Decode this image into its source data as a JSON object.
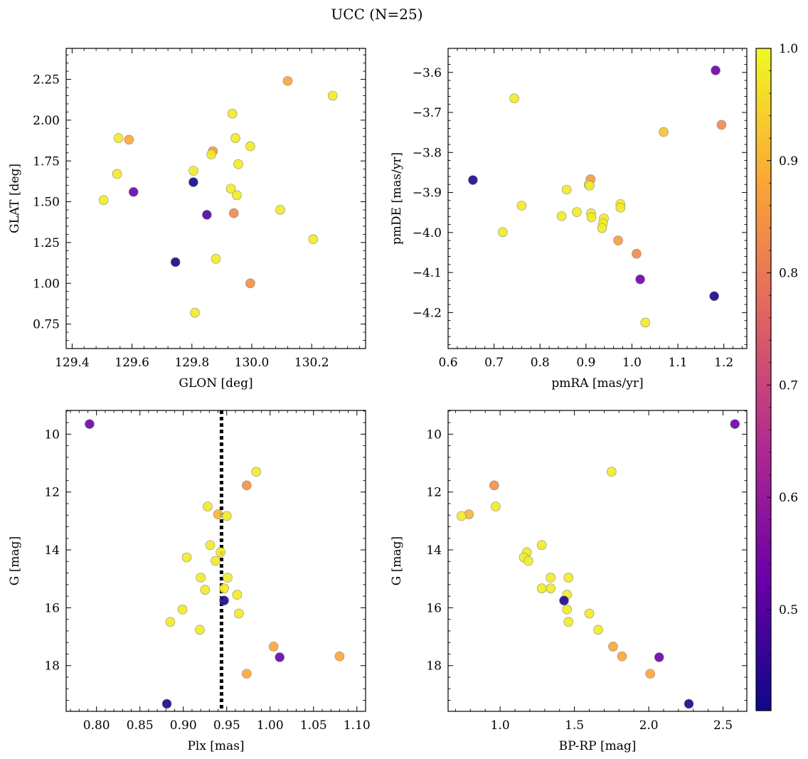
{
  "figure": {
    "title": "UCC (N=25)"
  },
  "colors": {
    "frame": "#000000",
    "point_edge": "#8a8a8a",
    "vline": "#000000",
    "cmap_stops": [
      "#0d0887",
      "#6a00a8",
      "#b12a90",
      "#e16462",
      "#fca636",
      "#f0f921"
    ]
  },
  "colorbar": {
    "range": [
      0.41,
      1.0
    ],
    "ticks": [
      0.5,
      0.6,
      0.7,
      0.8,
      0.9,
      1.0
    ],
    "tick_labels": [
      "0.5",
      "0.6",
      "0.7",
      "0.8",
      "0.9",
      "1.0"
    ]
  },
  "chart_data": [
    {
      "type": "scatter",
      "xlabel": "GLON [deg]",
      "ylabel": "GLAT [deg]",
      "xlim": [
        129.38,
        130.38
      ],
      "ylim": [
        0.6,
        2.44
      ],
      "xticks": [
        129.4,
        129.6,
        129.8,
        130.0,
        130.2
      ],
      "xtick_labels": [
        "129.4",
        "129.6",
        "129.8",
        "130.0",
        "130.2"
      ],
      "yticks": [
        0.75,
        1.0,
        1.25,
        1.5,
        1.75,
        2.0,
        2.25
      ],
      "ytick_labels": [
        "0.75",
        "1.00",
        "1.25",
        "1.50",
        "1.75",
        "2.00",
        "2.25"
      ],
      "x": [
        130.12,
        130.27,
        129.935,
        129.555,
        129.59,
        129.945,
        129.995,
        129.87,
        129.865,
        129.955,
        129.805,
        129.55,
        129.805,
        129.505,
        129.605,
        129.93,
        129.95,
        130.095,
        129.94,
        129.85,
        130.205,
        129.745,
        129.88,
        129.995,
        129.81
      ],
      "y": [
        2.24,
        2.15,
        2.04,
        1.89,
        1.88,
        1.89,
        1.84,
        1.81,
        1.79,
        1.73,
        1.69,
        1.67,
        1.62,
        1.51,
        1.56,
        1.58,
        1.54,
        1.45,
        1.43,
        1.42,
        1.27,
        1.13,
        1.15,
        1.0,
        0.82
      ],
      "c": [
        0.88,
        0.98,
        0.98,
        0.98,
        0.88,
        0.98,
        0.98,
        0.86,
        0.98,
        0.98,
        0.98,
        0.98,
        0.41,
        0.98,
        0.53,
        0.98,
        0.98,
        0.98,
        0.83,
        0.49,
        0.98,
        0.42,
        0.98,
        0.84,
        0.98
      ]
    },
    {
      "type": "scatter",
      "xlabel": "pmRA [mas/yr]",
      "ylabel": "pmDE [mas/yr]",
      "xlim": [
        0.6,
        1.25
      ],
      "ylim": [
        -4.29,
        -3.54
      ],
      "xticks": [
        0.6,
        0.7,
        0.8,
        0.9,
        1.0,
        1.1,
        1.2
      ],
      "xtick_labels": [
        "0.6",
        "0.7",
        "0.8",
        "0.9",
        "1.0",
        "1.1",
        "1.2"
      ],
      "yticks": [
        -4.2,
        -4.1,
        -4.0,
        -3.9,
        -3.8,
        -3.7,
        -3.6
      ],
      "ytick_labels": [
        "−4.2",
        "−4.1",
        "−4.0",
        "−3.9",
        "−3.8",
        "−3.7",
        "−3.6"
      ],
      "x": [
        1.182,
        0.744,
        1.069,
        1.195,
        0.654,
        0.91,
        0.906,
        0.908,
        0.858,
        0.76,
        0.975,
        0.975,
        0.88,
        0.911,
        0.847,
        0.939,
        0.912,
        0.937,
        0.935,
        0.719,
        0.97,
        1.01,
        1.018,
        1.179,
        1.029
      ],
      "y": [
        -3.595,
        -3.665,
        -3.749,
        -3.731,
        -3.869,
        -3.867,
        -3.881,
        -3.883,
        -3.893,
        -3.933,
        -3.929,
        -3.938,
        -3.949,
        -3.952,
        -3.959,
        -3.965,
        -3.962,
        -3.977,
        -3.989,
        -3.999,
        -4.02,
        -4.053,
        -4.117,
        -4.159,
        -4.225
      ],
      "c": [
        0.53,
        0.98,
        0.92,
        0.83,
        0.43,
        0.86,
        0.98,
        0.98,
        0.98,
        0.98,
        0.98,
        0.98,
        0.98,
        0.98,
        0.98,
        0.98,
        0.98,
        0.98,
        0.98,
        0.98,
        0.86,
        0.83,
        0.53,
        0.42,
        0.98
      ]
    },
    {
      "type": "scatter",
      "xlabel": "Plx [mas]",
      "ylabel": "G [mag]",
      "xlim": [
        0.765,
        1.11
      ],
      "ylim": [
        19.58,
        9.18
      ],
      "y_inverted": true,
      "xticks": [
        0.8,
        0.85,
        0.9,
        0.95,
        1.0,
        1.05,
        1.1
      ],
      "xtick_labels": [
        "0.80",
        "0.85",
        "0.90",
        "0.95",
        "1.00",
        "1.05",
        "1.10"
      ],
      "yticks": [
        10,
        12,
        14,
        16,
        18
      ],
      "ytick_labels": [
        "10",
        "12",
        "14",
        "16",
        "18"
      ],
      "vline_x": 0.944,
      "x": [
        0.792,
        0.984,
        0.973,
        0.928,
        0.94,
        0.95,
        0.931,
        0.943,
        0.937,
        0.904,
        0.92,
        0.951,
        0.947,
        0.925,
        0.962,
        0.947,
        0.899,
        0.964,
        0.885,
        0.919,
        1.004,
        1.011,
        1.08,
        0.973,
        0.881
      ],
      "y": [
        9.65,
        11.3,
        11.77,
        12.5,
        12.77,
        12.83,
        13.83,
        14.08,
        14.38,
        14.26,
        14.96,
        14.96,
        15.33,
        15.38,
        15.55,
        15.75,
        16.06,
        16.2,
        16.49,
        16.76,
        17.34,
        17.71,
        17.68,
        18.28,
        19.32
      ],
      "c": [
        0.53,
        0.98,
        0.84,
        0.98,
        0.9,
        0.98,
        0.98,
        0.98,
        0.98,
        0.98,
        0.98,
        0.98,
        0.98,
        0.98,
        0.98,
        0.43,
        0.98,
        0.98,
        0.98,
        0.98,
        0.88,
        0.53,
        0.88,
        0.88,
        0.42
      ]
    },
    {
      "type": "scatter",
      "xlabel": "BP-RP [mag]",
      "ylabel": "G [mag]",
      "xlim": [
        0.65,
        2.66
      ],
      "ylim": [
        19.58,
        9.18
      ],
      "y_inverted": true,
      "xticks": [
        1.0,
        1.5,
        2.0,
        2.5
      ],
      "xtick_labels": [
        "1.0",
        "1.5",
        "2.0",
        "2.5"
      ],
      "yticks": [
        10,
        12,
        14,
        16,
        18
      ],
      "ytick_labels": [
        "10",
        "12",
        "14",
        "16",
        "18"
      ],
      "x": [
        2.58,
        1.75,
        0.96,
        0.97,
        0.79,
        0.74,
        1.28,
        1.18,
        1.16,
        1.19,
        1.34,
        1.46,
        1.45,
        1.28,
        1.34,
        1.43,
        1.45,
        1.6,
        1.46,
        1.66,
        1.76,
        2.07,
        1.82,
        2.01,
        2.27
      ],
      "y": [
        9.65,
        11.3,
        11.77,
        12.5,
        12.77,
        12.83,
        13.83,
        14.08,
        14.26,
        14.38,
        14.96,
        14.96,
        15.55,
        15.33,
        15.33,
        15.75,
        16.06,
        16.2,
        16.49,
        16.76,
        17.34,
        17.71,
        17.68,
        18.28,
        19.32
      ],
      "c": [
        0.53,
        0.98,
        0.84,
        0.98,
        0.9,
        0.98,
        0.98,
        0.98,
        0.98,
        0.98,
        0.98,
        0.98,
        0.98,
        0.98,
        0.98,
        0.43,
        0.98,
        0.98,
        0.98,
        0.98,
        0.88,
        0.53,
        0.88,
        0.88,
        0.42
      ]
    }
  ]
}
